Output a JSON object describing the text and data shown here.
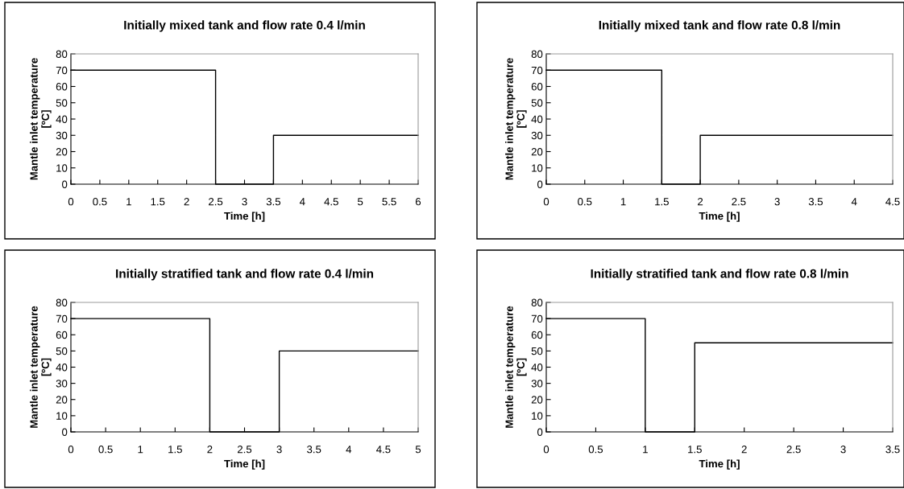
{
  "chart_data": [
    {
      "type": "line",
      "title": "Initially mixed tank and flow rate 0.4 l/min",
      "xlabel": "Time [h]",
      "ylabel": "Mantle inlet temperature\n[ºC]",
      "x": [
        0,
        2.5,
        2.5,
        3.5,
        3.5,
        6
      ],
      "series": [
        {
          "color": "#000000",
          "values": [
            70,
            70,
            0,
            0,
            30,
            30
          ]
        }
      ],
      "xlim": [
        0,
        6
      ],
      "xticks": [
        0,
        0.5,
        1,
        1.5,
        2,
        2.5,
        3,
        3.5,
        4,
        4.5,
        5,
        5.5,
        6
      ],
      "ylim": [
        0,
        80
      ],
      "yticks": [
        0,
        10,
        20,
        30,
        40,
        50,
        60,
        70,
        80
      ],
      "grid": false,
      "legend": false
    },
    {
      "type": "line",
      "title": "Initially mixed tank and flow rate 0.8 l/min",
      "xlabel": "Time [h]",
      "ylabel": "Mantle inlet temperature\n[ºC]",
      "x": [
        0,
        1.5,
        1.5,
        2,
        2,
        4.5
      ],
      "series": [
        {
          "color": "#000000",
          "values": [
            70,
            70,
            0,
            0,
            30,
            30
          ]
        }
      ],
      "xlim": [
        0,
        4.5
      ],
      "xticks": [
        0,
        0.5,
        1,
        1.5,
        2,
        2.5,
        3,
        3.5,
        4,
        4.5
      ],
      "ylim": [
        0,
        80
      ],
      "yticks": [
        0,
        10,
        20,
        30,
        40,
        50,
        60,
        70,
        80
      ],
      "grid": false,
      "legend": false
    },
    {
      "type": "line",
      "title": "Initially stratified tank and flow rate 0.4 l/min",
      "xlabel": "Time [h]",
      "ylabel": "Mantle inlet temperature\n[ºC]",
      "x": [
        0,
        2,
        2,
        3,
        3,
        5
      ],
      "series": [
        {
          "color": "#000000",
          "values": [
            70,
            70,
            0,
            0,
            50,
            50
          ]
        }
      ],
      "xlim": [
        0,
        5
      ],
      "xticks": [
        0,
        0.5,
        1,
        1.5,
        2,
        2.5,
        3,
        3.5,
        4,
        4.5,
        5
      ],
      "ylim": [
        0,
        80
      ],
      "yticks": [
        0,
        10,
        20,
        30,
        40,
        50,
        60,
        70,
        80
      ],
      "grid": false,
      "legend": false
    },
    {
      "type": "line",
      "title": "Initially stratified tank and flow rate 0.8 l/min",
      "xlabel": "Time [h]",
      "ylabel": "Mantle inlet temperature\n[ºC]",
      "x": [
        0,
        1,
        1,
        1.5,
        1.5,
        3.5
      ],
      "series": [
        {
          "color": "#000000",
          "values": [
            70,
            70,
            0,
            0,
            55,
            55
          ]
        }
      ],
      "xlim": [
        0,
        3.5
      ],
      "xticks": [
        0,
        0.5,
        1,
        1.5,
        2,
        2.5,
        3,
        3.5
      ],
      "ylim": [
        0,
        80
      ],
      "yticks": [
        0,
        10,
        20,
        30,
        40,
        50,
        60,
        70,
        80
      ],
      "grid": false,
      "legend": false
    }
  ]
}
